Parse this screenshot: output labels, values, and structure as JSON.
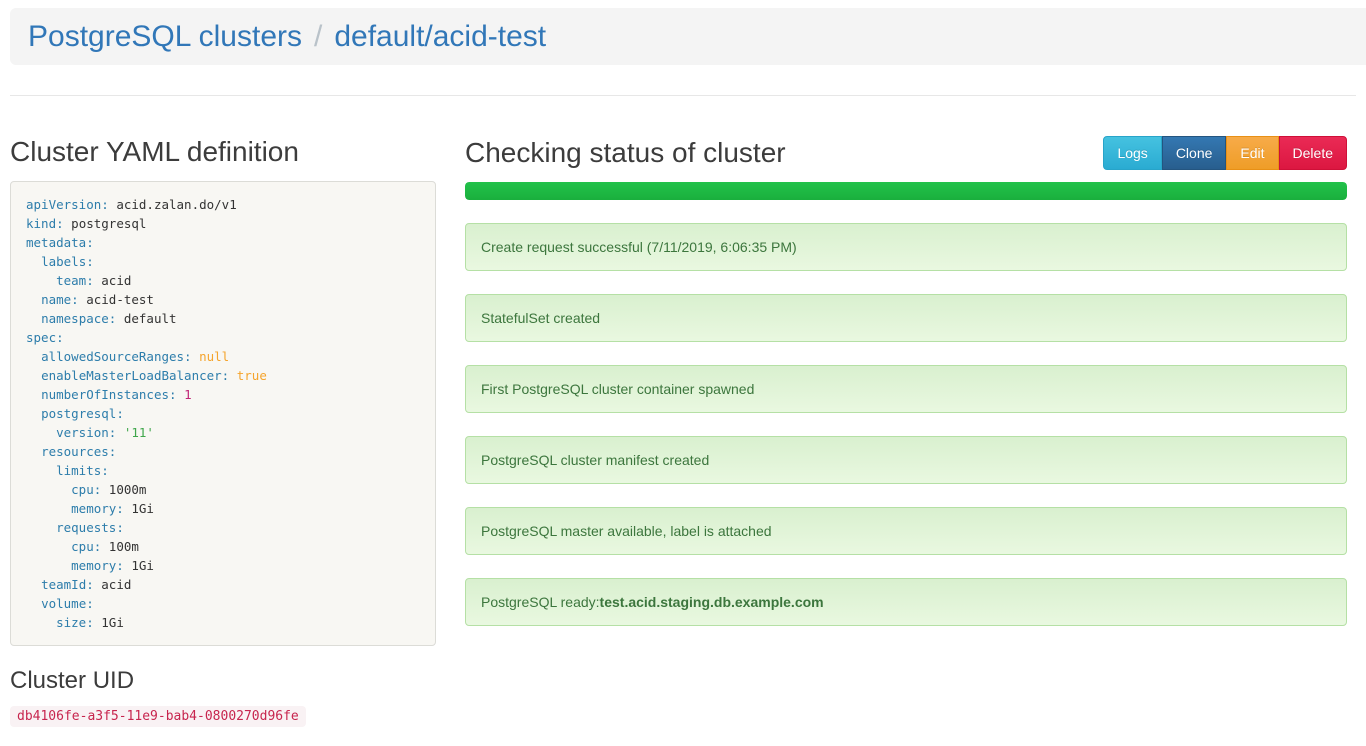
{
  "breadcrumb": {
    "root": "PostgreSQL clusters",
    "separator": "/",
    "current": "default/acid-test"
  },
  "yaml_section": {
    "title": "Cluster YAML definition",
    "lines": [
      [
        {
          "c": "key",
          "v": "apiVersion:"
        },
        {
          "c": "plain",
          "v": " acid.zalan.do/v1"
        }
      ],
      [
        {
          "c": "key",
          "v": "kind:"
        },
        {
          "c": "plain",
          "v": " postgresql"
        }
      ],
      [
        {
          "c": "key",
          "v": "metadata:"
        }
      ],
      [
        {
          "c": "plain",
          "v": "  "
        },
        {
          "c": "key",
          "v": "labels:"
        }
      ],
      [
        {
          "c": "plain",
          "v": "    "
        },
        {
          "c": "key",
          "v": "team:"
        },
        {
          "c": "plain",
          "v": " acid"
        }
      ],
      [
        {
          "c": "plain",
          "v": "  "
        },
        {
          "c": "key",
          "v": "name:"
        },
        {
          "c": "plain",
          "v": " acid-test"
        }
      ],
      [
        {
          "c": "plain",
          "v": "  "
        },
        {
          "c": "key",
          "v": "namespace:"
        },
        {
          "c": "plain",
          "v": " default"
        }
      ],
      [
        {
          "c": "key",
          "v": "spec:"
        }
      ],
      [
        {
          "c": "plain",
          "v": "  "
        },
        {
          "c": "key",
          "v": "allowedSourceRanges:"
        },
        {
          "c": "plain",
          "v": " "
        },
        {
          "c": "literal",
          "v": "null"
        }
      ],
      [
        {
          "c": "plain",
          "v": "  "
        },
        {
          "c": "key",
          "v": "enableMasterLoadBalancer:"
        },
        {
          "c": "plain",
          "v": " "
        },
        {
          "c": "literal",
          "v": "true"
        }
      ],
      [
        {
          "c": "plain",
          "v": "  "
        },
        {
          "c": "key",
          "v": "numberOfInstances:"
        },
        {
          "c": "plain",
          "v": " "
        },
        {
          "c": "number",
          "v": "1"
        }
      ],
      [
        {
          "c": "plain",
          "v": "  "
        },
        {
          "c": "key",
          "v": "postgresql:"
        }
      ],
      [
        {
          "c": "plain",
          "v": "    "
        },
        {
          "c": "key",
          "v": "version:"
        },
        {
          "c": "plain",
          "v": " "
        },
        {
          "c": "string",
          "v": "'11'"
        }
      ],
      [
        {
          "c": "plain",
          "v": "  "
        },
        {
          "c": "key",
          "v": "resources:"
        }
      ],
      [
        {
          "c": "plain",
          "v": "    "
        },
        {
          "c": "key",
          "v": "limits:"
        }
      ],
      [
        {
          "c": "plain",
          "v": "      "
        },
        {
          "c": "key",
          "v": "cpu:"
        },
        {
          "c": "plain",
          "v": " 1000m"
        }
      ],
      [
        {
          "c": "plain",
          "v": "      "
        },
        {
          "c": "key",
          "v": "memory:"
        },
        {
          "c": "plain",
          "v": " 1Gi"
        }
      ],
      [
        {
          "c": "plain",
          "v": "    "
        },
        {
          "c": "key",
          "v": "requests:"
        }
      ],
      [
        {
          "c": "plain",
          "v": "      "
        },
        {
          "c": "key",
          "v": "cpu:"
        },
        {
          "c": "plain",
          "v": " 100m"
        }
      ],
      [
        {
          "c": "plain",
          "v": "      "
        },
        {
          "c": "key",
          "v": "memory:"
        },
        {
          "c": "plain",
          "v": " 1Gi"
        }
      ],
      [
        {
          "c": "plain",
          "v": "  "
        },
        {
          "c": "key",
          "v": "teamId:"
        },
        {
          "c": "plain",
          "v": " acid"
        }
      ],
      [
        {
          "c": "plain",
          "v": "  "
        },
        {
          "c": "key",
          "v": "volume:"
        }
      ],
      [
        {
          "c": "plain",
          "v": "    "
        },
        {
          "c": "key",
          "v": "size:"
        },
        {
          "c": "plain",
          "v": " 1Gi"
        }
      ]
    ]
  },
  "uid_section": {
    "title": "Cluster UID",
    "uid": "db4106fe-a3f5-11e9-bab4-0800270d96fe"
  },
  "status_section": {
    "title": "Checking status of cluster",
    "buttons": [
      {
        "label": "Logs",
        "variant": "info",
        "color": "#31b0d5"
      },
      {
        "label": "Clone",
        "variant": "primary",
        "color": "#2e6da4"
      },
      {
        "label": "Edit",
        "variant": "warning",
        "color": "#f0ad4e"
      },
      {
        "label": "Delete",
        "variant": "danger",
        "color": "#e21d4c"
      }
    ],
    "progress_percent": 100,
    "messages": [
      {
        "text": "Create request successful (7/11/2019, 6:06:35 PM)"
      },
      {
        "text": "StatefulSet created"
      },
      {
        "text": "First PostgreSQL cluster container spawned"
      },
      {
        "text": "PostgreSQL cluster manifest created"
      },
      {
        "text": "PostgreSQL master available, label is attached"
      },
      {
        "text": "PostgreSQL ready: ",
        "bold": "test.acid.staging.db.example.com"
      }
    ]
  },
  "colors": {
    "accent_blue": "#3177b8",
    "banner_bg": "#f4f4f4",
    "progress_green": "#1fbd43",
    "alert_text_green": "#3c763d",
    "alert_bg_green": "#ddf2d4",
    "uid_pink": "#c7254e",
    "yaml_key_blue": "#2d7dab",
    "yaml_literal_orange": "#f5a42c",
    "yaml_number_pink": "#c12577",
    "yaml_string_green": "#3fa64b"
  }
}
